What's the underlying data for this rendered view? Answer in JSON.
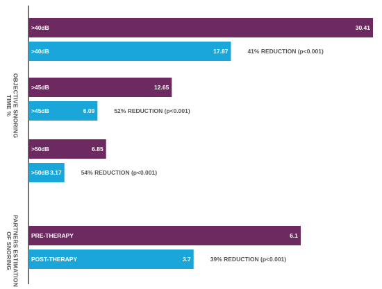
{
  "chart_data": {
    "type": "bar",
    "orientation": "horizontal",
    "grid": false,
    "colors": {
      "pre": "#6c2a60",
      "post": "#1aa6d9"
    },
    "sections": [
      {
        "ylabel_lines": [
          "OBJECTIVE SNORING",
          "TIME %"
        ],
        "groups": [
          {
            "pre": {
              "label": ">40dB",
              "value": 30.41,
              "value_label": "30.41"
            },
            "post": {
              "label": ">40dB",
              "value": 17.87,
              "value_label": "17.87"
            },
            "annotation": "41% REDUCTION (p<0.001)"
          },
          {
            "pre": {
              "label": ">45dB",
              "value": 12.65,
              "value_label": "12.65"
            },
            "post": {
              "label": ">45dB",
              "value": 6.09,
              "value_label": "6.09"
            },
            "annotation": "52% REDUCTION (p<0.001)"
          },
          {
            "pre": {
              "label": ">50dB",
              "value": 6.85,
              "value_label": "6.85"
            },
            "post": {
              "label": ">50dB",
              "value": 3.17,
              "value_label": "3.17"
            },
            "annotation": "54% REDUCTION (p<0.001)"
          }
        ]
      },
      {
        "ylabel_lines": [
          "PARTNERS ESTIMATION",
          "OF SNORING"
        ],
        "groups": [
          {
            "pre": {
              "label": "PRE-THERAPY",
              "value": 6.1,
              "value_label": "6.1"
            },
            "post": {
              "label": "POST-THERAPY",
              "value": 3.7,
              "value_label": "3.7"
            },
            "annotation": "39% REDUCTION (p<0.001)"
          }
        ]
      }
    ]
  }
}
